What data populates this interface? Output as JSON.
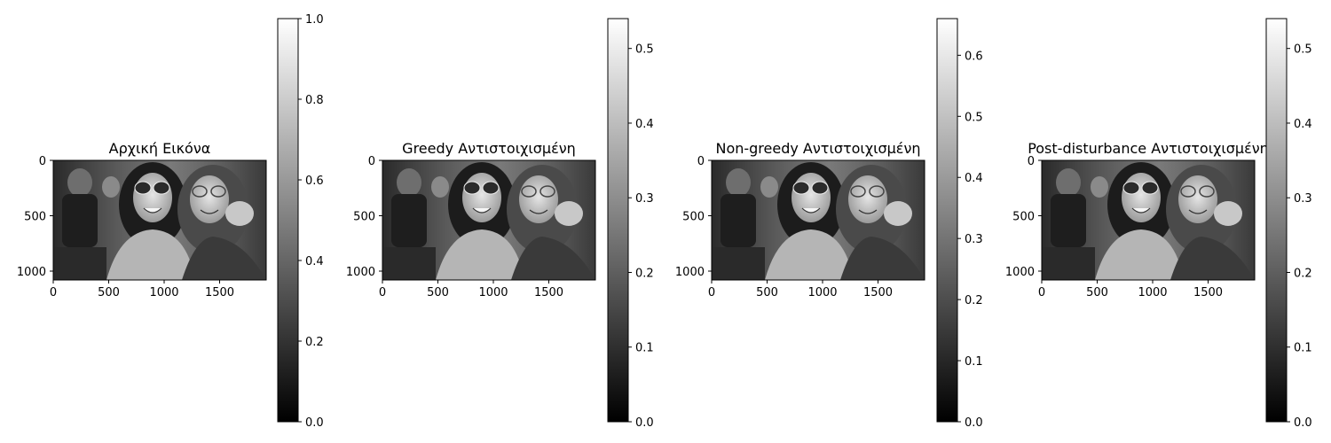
{
  "chart_data": [
    {
      "type": "heatmap",
      "title": "Αρχική Εικόνα",
      "x_ticks": [
        0,
        500,
        1000,
        1500
      ],
      "y_ticks": [
        0,
        500,
        1000
      ],
      "xlim": [
        0,
        1920
      ],
      "ylim": [
        1080,
        0
      ],
      "colormap": "gray",
      "colorbar": {
        "range": [
          0.0,
          1.0
        ],
        "ticks": [
          "0.0",
          "0.2",
          "0.4",
          "0.6",
          "0.8",
          "1.0"
        ]
      }
    },
    {
      "type": "heatmap",
      "title": "Greedy Αντιστοιχισμένη",
      "x_ticks": [
        0,
        500,
        1000,
        1500
      ],
      "y_ticks": [
        0,
        500,
        1000
      ],
      "xlim": [
        0,
        1920
      ],
      "ylim": [
        1080,
        0
      ],
      "colormap": "gray",
      "colorbar": {
        "range": [
          0.0,
          0.54
        ],
        "ticks": [
          "0.0",
          "0.1",
          "0.2",
          "0.3",
          "0.4",
          "0.5"
        ]
      }
    },
    {
      "type": "heatmap",
      "title": "Non-greedy Αντιστοιχισμένη",
      "x_ticks": [
        0,
        500,
        1000,
        1500
      ],
      "y_ticks": [
        0,
        500,
        1000
      ],
      "xlim": [
        0,
        1920
      ],
      "ylim": [
        1080,
        0
      ],
      "colormap": "gray",
      "colorbar": {
        "range": [
          0.0,
          0.66
        ],
        "ticks": [
          "0.0",
          "0.1",
          "0.2",
          "0.3",
          "0.4",
          "0.5",
          "0.6"
        ]
      }
    },
    {
      "type": "heatmap",
      "title": "Post-disturbance Αντιστοιχισμένη",
      "x_ticks": [
        0,
        500,
        1000,
        1500
      ],
      "y_ticks": [
        0,
        500,
        1000
      ],
      "xlim": [
        0,
        1920
      ],
      "ylim": [
        1080,
        0
      ],
      "colormap": "gray",
      "colorbar": {
        "range": [
          0.0,
          0.54
        ],
        "ticks": [
          "0.0",
          "0.1",
          "0.2",
          "0.3",
          "0.4",
          "0.5"
        ]
      }
    }
  ]
}
